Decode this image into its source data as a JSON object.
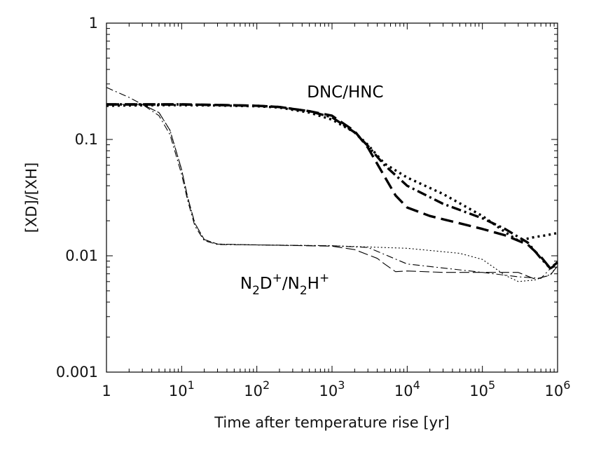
{
  "chart_data": {
    "type": "line",
    "xscale": "log",
    "yscale": "log",
    "xlim": [
      1,
      1000000
    ],
    "ylim": [
      0.001,
      1
    ],
    "xlabel": "Time after temperature rise [yr]",
    "ylabel": "[XD]/[XH]",
    "x_ticks": [
      {
        "value": 1,
        "base": "1",
        "exp": ""
      },
      {
        "value": 10,
        "base": "10",
        "exp": "1"
      },
      {
        "value": 100,
        "base": "10",
        "exp": "2"
      },
      {
        "value": 1000,
        "base": "10",
        "exp": "3"
      },
      {
        "value": 10000,
        "base": "10",
        "exp": "4"
      },
      {
        "value": 100000,
        "base": "10",
        "exp": "5"
      },
      {
        "value": 1000000,
        "base": "10",
        "exp": "6"
      }
    ],
    "y_ticks": [
      {
        "value": 0.001,
        "label": "0.001"
      },
      {
        "value": 0.01,
        "label": "0.01"
      },
      {
        "value": 0.1,
        "label": "0.1"
      },
      {
        "value": 1,
        "label": "1"
      }
    ],
    "annotations": [
      {
        "text": "DNC/HNC",
        "x": 1500,
        "y": 0.23
      },
      {
        "base1": "N",
        "sub1": "2",
        "base2": "D",
        "sup2": "+",
        "slash": "/",
        "base3": "N",
        "sub3": "2",
        "base4": "H",
        "sup4": "+",
        "x": 60,
        "y": 0.0052
      }
    ],
    "series": [
      {
        "name": "DNC/HNC dash-dot",
        "style": "dashdot",
        "weight": "thick",
        "x": [
          1,
          2,
          5,
          10,
          30,
          100,
          200,
          500,
          1000,
          2000,
          3000,
          5000,
          10000,
          30000,
          100000,
          200000,
          400000,
          600000,
          800000,
          1000000
        ],
        "y": [
          0.2,
          0.2,
          0.2,
          0.2,
          0.198,
          0.195,
          0.19,
          0.175,
          0.155,
          0.115,
          0.088,
          0.06,
          0.04,
          0.028,
          0.021,
          0.017,
          0.013,
          0.0095,
          0.0078,
          0.0085
        ]
      },
      {
        "name": "DNC/HNC dashed",
        "style": "dashed",
        "weight": "thick",
        "x": [
          1,
          2,
          5,
          10,
          30,
          100,
          200,
          500,
          1000,
          2000,
          3000,
          5000,
          7000,
          10000,
          20000,
          50000,
          100000,
          200000,
          400000,
          600000,
          800000,
          1000000
        ],
        "y": [
          0.2,
          0.2,
          0.2,
          0.2,
          0.198,
          0.195,
          0.19,
          0.175,
          0.16,
          0.118,
          0.085,
          0.048,
          0.033,
          0.026,
          0.022,
          0.019,
          0.017,
          0.015,
          0.0125,
          0.0098,
          0.0078,
          0.0088
        ]
      },
      {
        "name": "DNC/HNC dotted",
        "style": "dotted",
        "weight": "thick",
        "x": [
          1,
          2,
          5,
          10,
          30,
          100,
          200,
          500,
          1000,
          2000,
          3000,
          5000,
          10000,
          30000,
          100000,
          200000,
          300000,
          500000,
          700000,
          1000000
        ],
        "y": [
          0.195,
          0.196,
          0.197,
          0.197,
          0.196,
          0.193,
          0.188,
          0.17,
          0.148,
          0.115,
          0.09,
          0.062,
          0.047,
          0.034,
          0.022,
          0.016,
          0.0135,
          0.0145,
          0.015,
          0.0157
        ]
      },
      {
        "name": "N2D+/N2H+ dash-dot",
        "style": "dashdot",
        "weight": "thin",
        "x": [
          1,
          2,
          3,
          5,
          7,
          10,
          12,
          15,
          20,
          30,
          100,
          1000,
          3000,
          10000,
          100000,
          300000,
          600000,
          1000000
        ],
        "y": [
          0.28,
          0.23,
          0.2,
          0.16,
          0.11,
          0.05,
          0.03,
          0.018,
          0.0135,
          0.0125,
          0.0124,
          0.0122,
          0.0118,
          0.0085,
          0.0072,
          0.0066,
          0.0064,
          0.009
        ]
      },
      {
        "name": "N2D+/N2H+ dashed",
        "style": "dashed",
        "weight": "thin",
        "x": [
          1,
          2,
          3,
          5,
          7,
          10,
          12,
          15,
          20,
          30,
          100,
          1000,
          2000,
          4000,
          5000,
          7000,
          10000,
          30000,
          100000,
          300000,
          500000,
          800000,
          1000000
        ],
        "y": [
          0.2,
          0.2,
          0.2,
          0.17,
          0.12,
          0.055,
          0.032,
          0.019,
          0.0138,
          0.0126,
          0.0124,
          0.0121,
          0.0113,
          0.0095,
          0.0085,
          0.0073,
          0.0074,
          0.0072,
          0.0072,
          0.0072,
          0.0063,
          0.0068,
          0.0082
        ]
      },
      {
        "name": "N2D+/N2H+ dotted",
        "style": "dotted",
        "weight": "thin",
        "x": [
          1,
          2,
          3,
          5,
          7,
          10,
          12,
          15,
          20,
          30,
          100,
          1000,
          10000,
          50000,
          100000,
          200000,
          300000,
          500000,
          800000,
          1000000
        ],
        "y": [
          0.2,
          0.2,
          0.2,
          0.17,
          0.12,
          0.055,
          0.032,
          0.019,
          0.0138,
          0.0126,
          0.0124,
          0.0122,
          0.0116,
          0.0105,
          0.0093,
          0.0068,
          0.006,
          0.0062,
          0.0069,
          0.0082
        ]
      }
    ]
  }
}
